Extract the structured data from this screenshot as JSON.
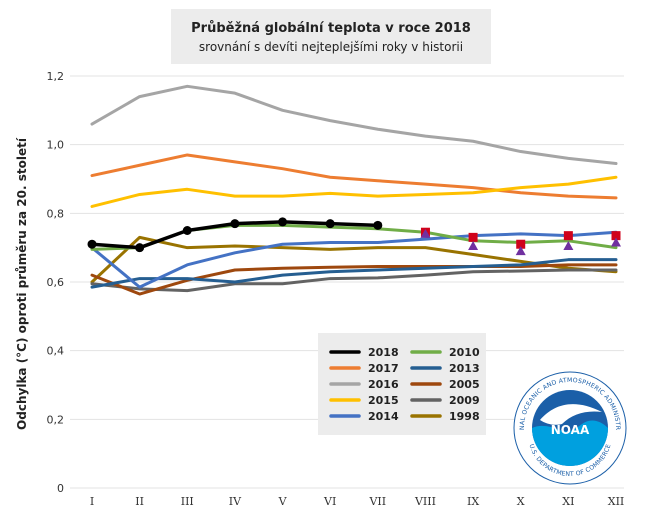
{
  "chart_data": {
    "type": "line",
    "title": "Průběžná globální teplota v roce 2018",
    "subtitle": "srovnání s devíti nejteplejšími roky v historii",
    "xlabel": "",
    "ylabel": "Odchylka (°C) oproti průměru za 20. století",
    "categories": [
      "I",
      "II",
      "III",
      "IV",
      "V",
      "VI",
      "VII",
      "VIII",
      "IX",
      "X",
      "XI",
      "XII"
    ],
    "ylim": [
      0,
      1.2
    ],
    "yticks": [
      "0",
      "0,2",
      "0,4",
      "0,6",
      "0,8",
      "1,0",
      "1,2"
    ],
    "grid": true,
    "legend_placement": "bottom-right",
    "series": [
      {
        "name": "2018",
        "color": "#000000",
        "values": [
          0.71,
          0.7,
          0.75,
          0.77,
          0.775,
          0.77,
          0.765,
          null,
          null,
          null,
          null,
          null
        ]
      },
      {
        "name": "2017",
        "color": "#ed7d31",
        "values": [
          0.91,
          0.94,
          0.97,
          0.95,
          0.93,
          0.905,
          0.895,
          0.885,
          0.875,
          0.86,
          0.85,
          0.845
        ]
      },
      {
        "name": "2016",
        "color": "#a5a5a5",
        "values": [
          1.06,
          1.14,
          1.17,
          1.15,
          1.1,
          1.07,
          1.045,
          1.025,
          1.01,
          0.98,
          0.96,
          0.945
        ]
      },
      {
        "name": "2015",
        "color": "#ffc000",
        "values": [
          0.82,
          0.855,
          0.87,
          0.85,
          0.85,
          0.858,
          0.85,
          0.855,
          0.86,
          0.875,
          0.885,
          0.905
        ]
      },
      {
        "name": "2014",
        "color": "#4472c4",
        "values": [
          0.7,
          0.585,
          0.65,
          0.685,
          0.71,
          0.715,
          0.715,
          0.725,
          0.735,
          0.74,
          0.735,
          0.745
        ]
      },
      {
        "name": "2010",
        "color": "#70ad47",
        "values": [
          0.695,
          0.7,
          0.75,
          0.765,
          0.765,
          0.76,
          0.755,
          0.745,
          0.72,
          0.715,
          0.72,
          0.7
        ]
      },
      {
        "name": "2013",
        "color": "#255e91",
        "values": [
          0.585,
          0.61,
          0.61,
          0.6,
          0.62,
          0.63,
          0.635,
          0.64,
          0.645,
          0.65,
          0.665,
          0.665
        ]
      },
      {
        "name": "2005",
        "color": "#9e480e",
        "values": [
          0.62,
          0.565,
          0.605,
          0.635,
          0.64,
          0.643,
          0.645,
          0.645,
          0.645,
          0.645,
          0.65,
          0.65
        ]
      },
      {
        "name": "2009",
        "color": "#636363",
        "values": [
          0.595,
          0.58,
          0.575,
          0.595,
          0.595,
          0.61,
          0.612,
          0.62,
          0.63,
          0.632,
          0.635,
          0.635
        ]
      },
      {
        "name": "1998",
        "color": "#997300",
        "values": [
          0.6,
          0.73,
          0.7,
          0.705,
          0.7,
          0.695,
          0.7,
          0.7,
          0.68,
          0.66,
          0.64,
          0.63
        ]
      }
    ],
    "markers": [
      {
        "shape": "square",
        "color": "#d0021b",
        "values": [
          null,
          null,
          null,
          null,
          null,
          null,
          null,
          0.745,
          0.73,
          0.71,
          0.735,
          0.735
        ]
      },
      {
        "shape": "triangle",
        "color": "#7030a0",
        "values": [
          null,
          null,
          null,
          null,
          null,
          null,
          null,
          0.74,
          0.705,
          0.69,
          0.705,
          0.715
        ]
      }
    ]
  },
  "logo": {
    "ring_text": "NATIONAL OCEANIC AND ATMOSPHERIC ADMINISTRATION",
    "bottom_text": "U.S. DEPARTMENT OF COMMERCE",
    "center_text": "NOAA"
  }
}
